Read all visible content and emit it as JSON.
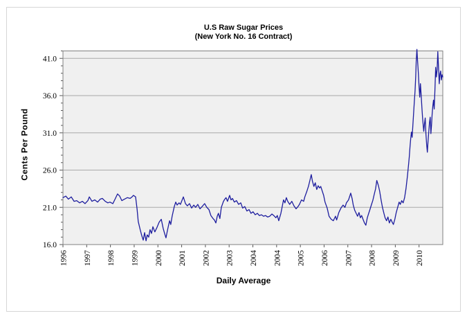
{
  "chart_data": {
    "type": "line",
    "title": "U.S Raw Sugar Prices",
    "subtitle": "(New York No. 16 Contract)",
    "ylabel": "Cents Per Pound",
    "xlabel": "Daily Average",
    "ylim": [
      16.0,
      42.0
    ],
    "y_ticks": [
      16.0,
      21.0,
      26.0,
      31.0,
      36.0,
      41.0
    ],
    "y_tick_labels": [
      "16.0",
      "21.0",
      "26.0",
      "31.0",
      "36.0",
      "41.0"
    ],
    "x_ticks": [
      "1996",
      "1997",
      "1998",
      "1999",
      "2000",
      "2001",
      "2002",
      "2003",
      "2004",
      "2004",
      "2005",
      "2006",
      "2007",
      "2008",
      "2009",
      "2010"
    ],
    "x_encoding": "x values are tick-index units: 0 = 1996 tick, 15 = 2010 tick, 16 = right edge of plot",
    "grid": "horizontal-major",
    "legend": "none",
    "line_color": "#1c1c9e",
    "plot_bg": "#f0f0f0",
    "gridline_color": "#a9a9a9",
    "frame_color": "#808080",
    "series": [
      {
        "name": "U.S raw sugar price, cents per pound (daily average)",
        "points": [
          [
            0,
            22.3
          ],
          [
            0.12,
            22.5
          ],
          [
            0.23,
            22.1
          ],
          [
            0.35,
            22.4
          ],
          [
            0.47,
            21.8
          ],
          [
            0.58,
            21.9
          ],
          [
            0.7,
            21.6
          ],
          [
            0.82,
            21.8
          ],
          [
            0.93,
            21.5
          ],
          [
            1.05,
            21.9
          ],
          [
            1.11,
            22.4
          ],
          [
            1.22,
            21.8
          ],
          [
            1.34,
            22.0
          ],
          [
            1.46,
            21.7
          ],
          [
            1.57,
            22.1
          ],
          [
            1.66,
            22.2
          ],
          [
            1.78,
            21.8
          ],
          [
            1.89,
            21.6
          ],
          [
            1.98,
            21.7
          ],
          [
            2.1,
            21.5
          ],
          [
            2.18,
            22.0
          ],
          [
            2.3,
            22.8
          ],
          [
            2.39,
            22.5
          ],
          [
            2.48,
            21.9
          ],
          [
            2.59,
            22.1
          ],
          [
            2.71,
            22.3
          ],
          [
            2.83,
            22.2
          ],
          [
            2.91,
            22.4
          ],
          [
            2.97,
            22.6
          ],
          [
            3.06,
            22.4
          ],
          [
            3.12,
            20.8
          ],
          [
            3.17,
            19.1
          ],
          [
            3.26,
            17.9
          ],
          [
            3.32,
            17.2
          ],
          [
            3.38,
            16.6
          ],
          [
            3.44,
            17.6
          ],
          [
            3.5,
            16.5
          ],
          [
            3.55,
            17.3
          ],
          [
            3.61,
            17.0
          ],
          [
            3.67,
            18.0
          ],
          [
            3.73,
            17.5
          ],
          [
            3.79,
            18.4
          ],
          [
            3.87,
            17.7
          ],
          [
            3.96,
            18.3
          ],
          [
            4.05,
            19.0
          ],
          [
            4.14,
            19.4
          ],
          [
            4.22,
            18.2
          ],
          [
            4.28,
            17.5
          ],
          [
            4.34,
            16.9
          ],
          [
            4.4,
            17.9
          ],
          [
            4.49,
            19.2
          ],
          [
            4.54,
            18.7
          ],
          [
            4.6,
            19.8
          ],
          [
            4.69,
            21.1
          ],
          [
            4.75,
            21.7
          ],
          [
            4.81,
            21.3
          ],
          [
            4.89,
            21.6
          ],
          [
            4.95,
            21.4
          ],
          [
            5.01,
            21.9
          ],
          [
            5.07,
            22.4
          ],
          [
            5.16,
            21.5
          ],
          [
            5.24,
            21.2
          ],
          [
            5.33,
            21.5
          ],
          [
            5.42,
            20.9
          ],
          [
            5.51,
            21.3
          ],
          [
            5.59,
            21.0
          ],
          [
            5.68,
            21.4
          ],
          [
            5.77,
            20.8
          ],
          [
            5.86,
            21.1
          ],
          [
            5.94,
            21.4
          ],
          [
            5.97,
            21.5
          ],
          [
            6.06,
            21.0
          ],
          [
            6.15,
            20.7
          ],
          [
            6.23,
            19.9
          ],
          [
            6.32,
            19.5
          ],
          [
            6.38,
            19.3
          ],
          [
            6.44,
            18.9
          ],
          [
            6.5,
            19.8
          ],
          [
            6.55,
            20.2
          ],
          [
            6.61,
            19.5
          ],
          [
            6.67,
            21.0
          ],
          [
            6.76,
            21.8
          ],
          [
            6.82,
            22.1
          ],
          [
            6.87,
            22.3
          ],
          [
            6.93,
            21.8
          ],
          [
            7.02,
            22.6
          ],
          [
            7.08,
            22.0
          ],
          [
            7.14,
            22.2
          ],
          [
            7.22,
            21.7
          ],
          [
            7.31,
            21.9
          ],
          [
            7.4,
            21.4
          ],
          [
            7.49,
            21.6
          ],
          [
            7.57,
            20.9
          ],
          [
            7.66,
            21.1
          ],
          [
            7.75,
            20.5
          ],
          [
            7.84,
            20.7
          ],
          [
            7.92,
            20.2
          ],
          [
            8.01,
            20.4
          ],
          [
            8.1,
            20.0
          ],
          [
            8.19,
            20.2
          ],
          [
            8.27,
            19.9
          ],
          [
            8.36,
            20.0
          ],
          [
            8.45,
            19.8
          ],
          [
            8.53,
            19.9
          ],
          [
            8.62,
            19.7
          ],
          [
            8.71,
            19.8
          ],
          [
            8.8,
            20.1
          ],
          [
            8.88,
            19.9
          ],
          [
            8.97,
            19.6
          ],
          [
            9.03,
            19.9
          ],
          [
            9.09,
            19.2
          ],
          [
            9.18,
            20.2
          ],
          [
            9.23,
            21.0
          ],
          [
            9.29,
            22.0
          ],
          [
            9.35,
            21.6
          ],
          [
            9.41,
            22.3
          ],
          [
            9.47,
            21.8
          ],
          [
            9.55,
            21.4
          ],
          [
            9.64,
            21.8
          ],
          [
            9.73,
            21.2
          ],
          [
            9.82,
            20.8
          ],
          [
            9.9,
            21.1
          ],
          [
            9.96,
            21.4
          ],
          [
            10.05,
            22.0
          ],
          [
            10.14,
            21.8
          ],
          [
            10.19,
            22.4
          ],
          [
            10.28,
            23.2
          ],
          [
            10.34,
            23.8
          ],
          [
            10.4,
            24.6
          ],
          [
            10.46,
            25.4
          ],
          [
            10.51,
            24.5
          ],
          [
            10.57,
            23.8
          ],
          [
            10.63,
            24.3
          ],
          [
            10.69,
            23.4
          ],
          [
            10.75,
            23.9
          ],
          [
            10.81,
            23.6
          ],
          [
            10.86,
            23.8
          ],
          [
            10.92,
            23.2
          ],
          [
            10.98,
            22.6
          ],
          [
            11.04,
            21.7
          ],
          [
            11.13,
            20.9
          ],
          [
            11.21,
            19.8
          ],
          [
            11.3,
            19.4
          ],
          [
            11.39,
            19.2
          ],
          [
            11.48,
            19.8
          ],
          [
            11.53,
            19.3
          ],
          [
            11.62,
            20.3
          ],
          [
            11.71,
            20.9
          ],
          [
            11.8,
            21.3
          ],
          [
            11.88,
            21.0
          ],
          [
            11.94,
            21.6
          ],
          [
            12.03,
            22.0
          ],
          [
            12.12,
            22.9
          ],
          [
            12.18,
            22.2
          ],
          [
            12.23,
            21.3
          ],
          [
            12.29,
            20.6
          ],
          [
            12.35,
            20.2
          ],
          [
            12.41,
            19.8
          ],
          [
            12.47,
            20.3
          ],
          [
            12.53,
            19.6
          ],
          [
            12.58,
            19.9
          ],
          [
            12.64,
            19.4
          ],
          [
            12.7,
            18.9
          ],
          [
            12.76,
            18.6
          ],
          [
            12.82,
            19.6
          ],
          [
            12.88,
            20.2
          ],
          [
            12.93,
            20.7
          ],
          [
            12.99,
            21.3
          ],
          [
            13.05,
            21.9
          ],
          [
            13.11,
            22.7
          ],
          [
            13.17,
            23.5
          ],
          [
            13.22,
            24.6
          ],
          [
            13.28,
            24.0
          ],
          [
            13.34,
            23.2
          ],
          [
            13.4,
            22.0
          ],
          [
            13.46,
            21.0
          ],
          [
            13.52,
            20.2
          ],
          [
            13.57,
            19.6
          ],
          [
            13.63,
            19.2
          ],
          [
            13.69,
            19.7
          ],
          [
            13.75,
            18.9
          ],
          [
            13.81,
            19.4
          ],
          [
            13.87,
            19.0
          ],
          [
            13.92,
            18.7
          ],
          [
            13.98,
            19.4
          ],
          [
            14.04,
            20.3
          ],
          [
            14.1,
            21.0
          ],
          [
            14.16,
            21.7
          ],
          [
            14.21,
            21.4
          ],
          [
            14.27,
            21.9
          ],
          [
            14.33,
            21.6
          ],
          [
            14.39,
            22.3
          ],
          [
            14.45,
            23.5
          ],
          [
            14.51,
            25.2
          ],
          [
            14.56,
            26.8
          ],
          [
            14.59,
            27.8
          ],
          [
            14.62,
            29.1
          ],
          [
            14.65,
            30.3
          ],
          [
            14.68,
            31.1
          ],
          [
            14.71,
            30.4
          ],
          [
            14.74,
            32.1
          ],
          [
            14.77,
            33.6
          ],
          [
            14.8,
            35.1
          ],
          [
            14.83,
            36.6
          ],
          [
            14.86,
            38.6
          ],
          [
            14.88,
            40.6
          ],
          [
            14.91,
            42.2
          ],
          [
            14.94,
            40.6
          ],
          [
            14.97,
            39.0
          ],
          [
            15.0,
            37.2
          ],
          [
            15.03,
            35.8
          ],
          [
            15.06,
            37.6
          ],
          [
            15.09,
            36.0
          ],
          [
            15.12,
            34.4
          ],
          [
            15.15,
            33.0
          ],
          [
            15.18,
            31.8
          ],
          [
            15.2,
            31.2
          ],
          [
            15.23,
            32.3
          ],
          [
            15.26,
            33.0
          ],
          [
            15.29,
            30.9
          ],
          [
            15.32,
            29.4
          ],
          [
            15.35,
            28.4
          ],
          [
            15.38,
            29.9
          ],
          [
            15.41,
            31.2
          ],
          [
            15.44,
            32.4
          ],
          [
            15.47,
            33.1
          ],
          [
            15.5,
            30.9
          ],
          [
            15.53,
            32.3
          ],
          [
            15.55,
            33.5
          ],
          [
            15.58,
            34.6
          ],
          [
            15.61,
            35.4
          ],
          [
            15.64,
            34.2
          ],
          [
            15.67,
            36.9
          ],
          [
            15.7,
            39.8
          ],
          [
            15.73,
            38.5
          ],
          [
            15.76,
            39.5
          ],
          [
            15.79,
            41.9
          ],
          [
            15.82,
            39.8
          ],
          [
            15.85,
            37.6
          ],
          [
            15.88,
            38.9
          ],
          [
            15.91,
            39.3
          ],
          [
            15.94,
            38.1
          ],
          [
            15.97,
            38.8
          ],
          [
            16,
            38.5
          ]
        ]
      }
    ]
  }
}
